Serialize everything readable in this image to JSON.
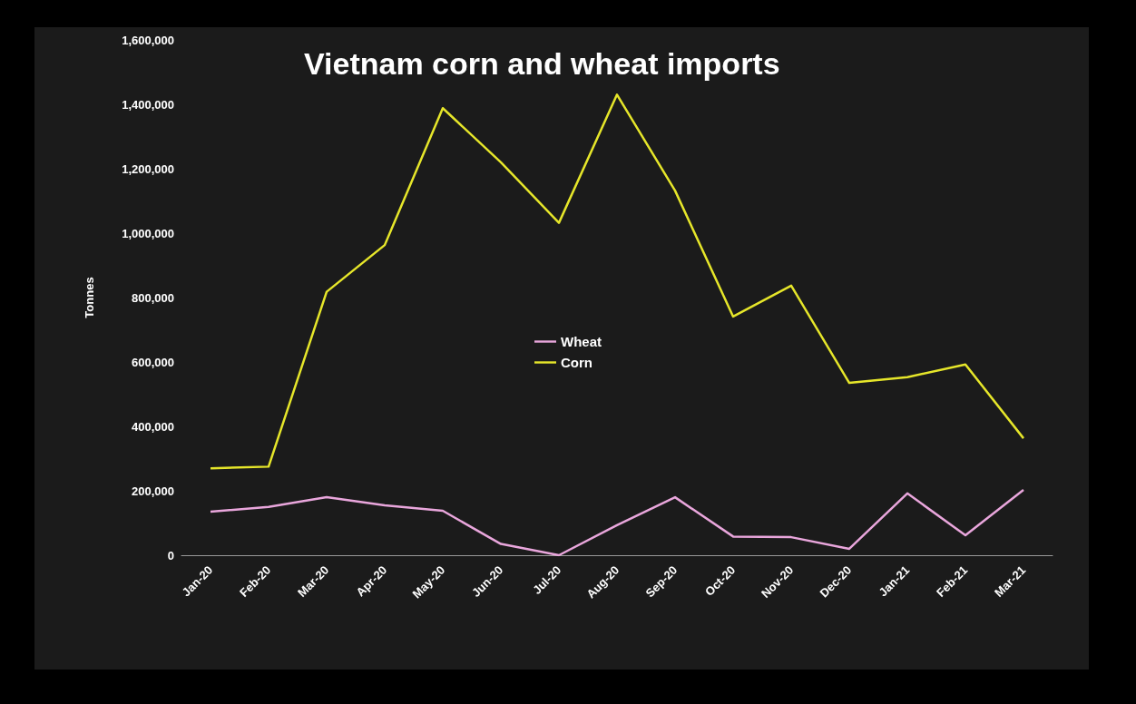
{
  "chart_data": {
    "type": "line",
    "title": "Vietnam corn and wheat imports",
    "ylabel": "Tonnes",
    "categories": [
      "Jan-20",
      "Feb-20",
      "Mar-20",
      "Apr-20",
      "May-20",
      "Jun-20",
      "Jul-20",
      "Aug-20",
      "Sep-20",
      "Oct-20",
      "Nov-20",
      "Dec-20",
      "Jan-21",
      "Feb-21",
      "Mar-21"
    ],
    "series": [
      {
        "name": "Wheat",
        "color": "#e9a6dc",
        "values": [
          135000,
          150000,
          180000,
          155000,
          138000,
          35000,
          0,
          93000,
          180000,
          58000,
          56000,
          20000,
          192000,
          62000,
          203000
        ]
      },
      {
        "name": "Corn",
        "color": "#e6e62a",
        "values": [
          270000,
          275000,
          818000,
          963000,
          1388000,
          1220000,
          1032000,
          1430000,
          1132000,
          741000,
          837000,
          535000,
          553000,
          592000,
          363000
        ]
      }
    ],
    "ylim": [
      0,
      1600000
    ],
    "yticks": [
      0,
      {
        "value": 200000,
        "label": "200,000"
      },
      {
        "value": 400000,
        "label": "400,000"
      },
      {
        "value": 600000,
        "label": "600,000"
      },
      {
        "value": 800000,
        "label": "800,000"
      },
      {
        "value": 1000000,
        "label": "1,000,000"
      },
      {
        "value": 1200000,
        "label": "1,200,000"
      },
      {
        "value": 1400000,
        "label": "1,400,000"
      },
      {
        "value": 1600000,
        "label": "1,600,000"
      }
    ],
    "grid": false,
    "legend": "center",
    "marker": "none",
    "line_style": "solid"
  }
}
